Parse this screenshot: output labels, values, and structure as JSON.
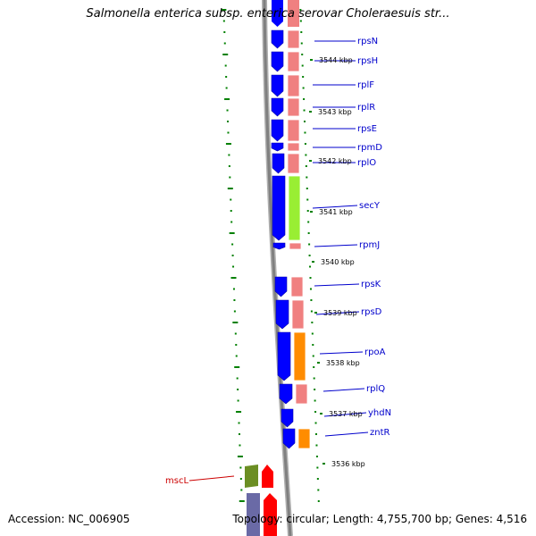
{
  "title": "Salmonella enterica subsp. enterica serovar Choleraesuis str...",
  "accession": "Accession: NC_006905",
  "summary": "Topology: circular; Length: 4,755,700 bp; Genes: 4,516",
  "colors": {
    "cds": "#0000ff",
    "rna_pink": "#f08080",
    "sec_green": "#99ee33",
    "rpoA_orange": "#ff8c00",
    "mscL_green": "#6b8e23",
    "mscL_red": "#ff0000",
    "label_blue": "#0000cc",
    "label_red": "#cc0000",
    "tick_green": "#008000",
    "backbone": "#808080"
  },
  "kbp_ticks": [
    "3544 kbp",
    "3543 kbp",
    "3542 kbp",
    "3541 kbp",
    "3540 kbp",
    "3539 kbp",
    "3538 kbp",
    "3537 kbp",
    "3536 kbp"
  ],
  "genes": [
    {
      "name": "rpsN",
      "color_key": "label_blue"
    },
    {
      "name": "rpsH",
      "color_key": "label_blue"
    },
    {
      "name": "rplF",
      "color_key": "label_blue"
    },
    {
      "name": "rplR",
      "color_key": "label_blue"
    },
    {
      "name": "rpsE",
      "color_key": "label_blue"
    },
    {
      "name": "rpmD",
      "color_key": "label_blue"
    },
    {
      "name": "rplO",
      "color_key": "label_blue"
    },
    {
      "name": "secY",
      "color_key": "label_blue"
    },
    {
      "name": "rpmJ",
      "color_key": "label_blue"
    },
    {
      "name": "rpsK",
      "color_key": "label_blue"
    },
    {
      "name": "rpsD",
      "color_key": "label_blue"
    },
    {
      "name": "rpoA",
      "color_key": "label_blue"
    },
    {
      "name": "rplQ",
      "color_key": "label_blue"
    },
    {
      "name": "yhdN",
      "color_key": "label_blue"
    },
    {
      "name": "zntR",
      "color_key": "label_blue"
    },
    {
      "name": "mscL",
      "color_key": "label_red"
    }
  ]
}
